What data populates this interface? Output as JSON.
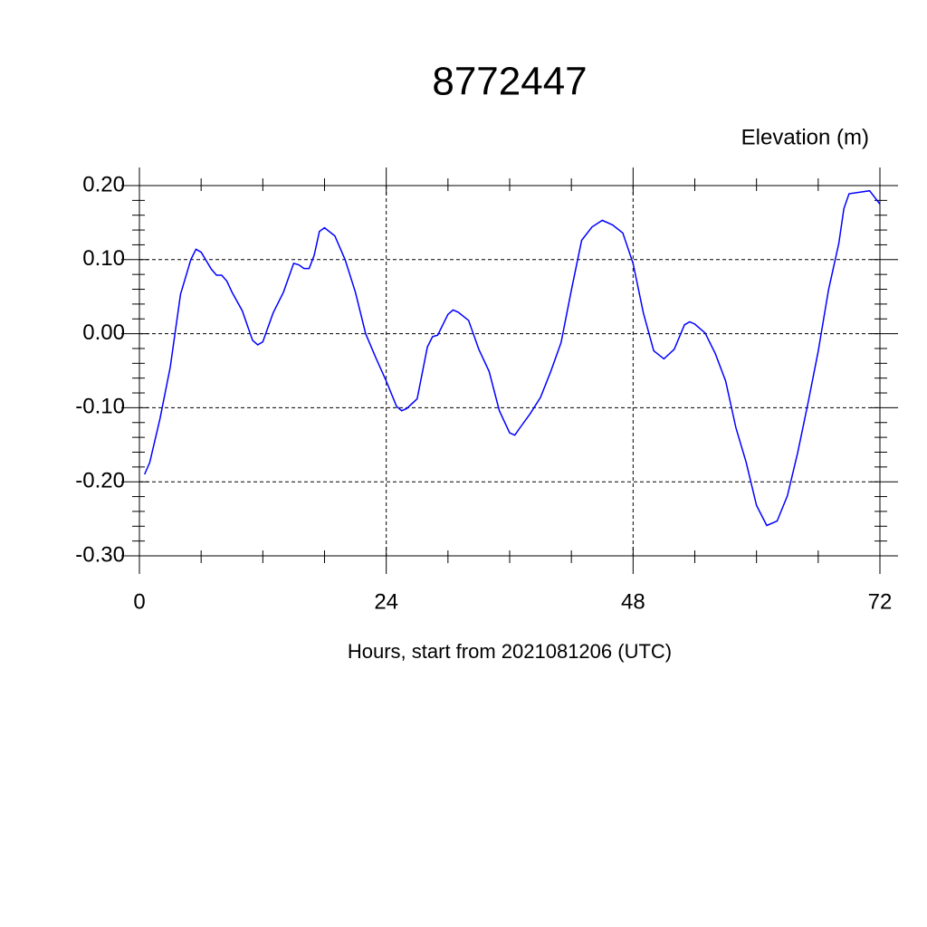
{
  "chart_data": {
    "type": "line",
    "title": "8772447",
    "subtitle": "Elevation (m)",
    "x_label": "Hours, start from 2021081206 (UTC)",
    "x": [
      0.5,
      1,
      2,
      3,
      4,
      5,
      5.5,
      6,
      7,
      7.5,
      8,
      8.5,
      9,
      10,
      11,
      11.5,
      12,
      13,
      14,
      15,
      15.5,
      16,
      16.5,
      17,
      17.5,
      18,
      19,
      20,
      21,
      22,
      23,
      24,
      25,
      25.5,
      26,
      27,
      28,
      28.5,
      29,
      30,
      30.5,
      31,
      32,
      33,
      34,
      35,
      36,
      36.5,
      37,
      38,
      39,
      40,
      41,
      42,
      43,
      44,
      45,
      46,
      47,
      48,
      49,
      50,
      51,
      52,
      53,
      53.5,
      54,
      55,
      56,
      57,
      58,
      59,
      60,
      61,
      62,
      63,
      64,
      65,
      66,
      67,
      68,
      68.5,
      69,
      70,
      71,
      72
    ],
    "series": [
      {
        "name": "Elevation",
        "color": "#0000ff",
        "values": [
          -0.19,
          -0.174,
          -0.115,
          -0.045,
          0.053,
          0.1,
          0.114,
          0.11,
          0.087,
          0.079,
          0.079,
          0.071,
          0.056,
          0.031,
          -0.009,
          -0.015,
          -0.011,
          0.028,
          0.056,
          0.095,
          0.093,
          0.088,
          0.088,
          0.106,
          0.138,
          0.143,
          0.132,
          0.1,
          0.056,
          0.0,
          -0.033,
          -0.064,
          -0.098,
          -0.104,
          -0.101,
          -0.088,
          -0.018,
          -0.004,
          -0.002,
          0.026,
          0.032,
          0.029,
          0.018,
          -0.021,
          -0.051,
          -0.104,
          -0.134,
          -0.137,
          -0.127,
          -0.108,
          -0.086,
          -0.051,
          -0.012,
          0.059,
          0.126,
          0.144,
          0.153,
          0.147,
          0.136,
          0.095,
          0.028,
          -0.023,
          -0.034,
          -0.021,
          0.012,
          0.016,
          0.013,
          0.001,
          -0.027,
          -0.064,
          -0.127,
          -0.174,
          -0.232,
          -0.259,
          -0.253,
          -0.219,
          -0.161,
          -0.094,
          -0.024,
          0.059,
          0.122,
          0.169,
          0.189,
          0.191,
          0.193,
          0.175
        ]
      }
    ],
    "xlim": [
      0,
      72
    ],
    "xticks": [
      0,
      24,
      48,
      72
    ],
    "ylim": [
      -0.3,
      0.2
    ],
    "yticks": [
      {
        "value": -0.3,
        "label": "-0.30"
      },
      {
        "value": -0.2,
        "label": "-0.20"
      },
      {
        "value": -0.1,
        "label": "-0.10"
      },
      {
        "value": 0,
        "label": "0.00"
      },
      {
        "value": 0.1,
        "label": "0.10"
      },
      {
        "value": 0.2,
        "label": "0.20"
      }
    ],
    "grid": true
  }
}
